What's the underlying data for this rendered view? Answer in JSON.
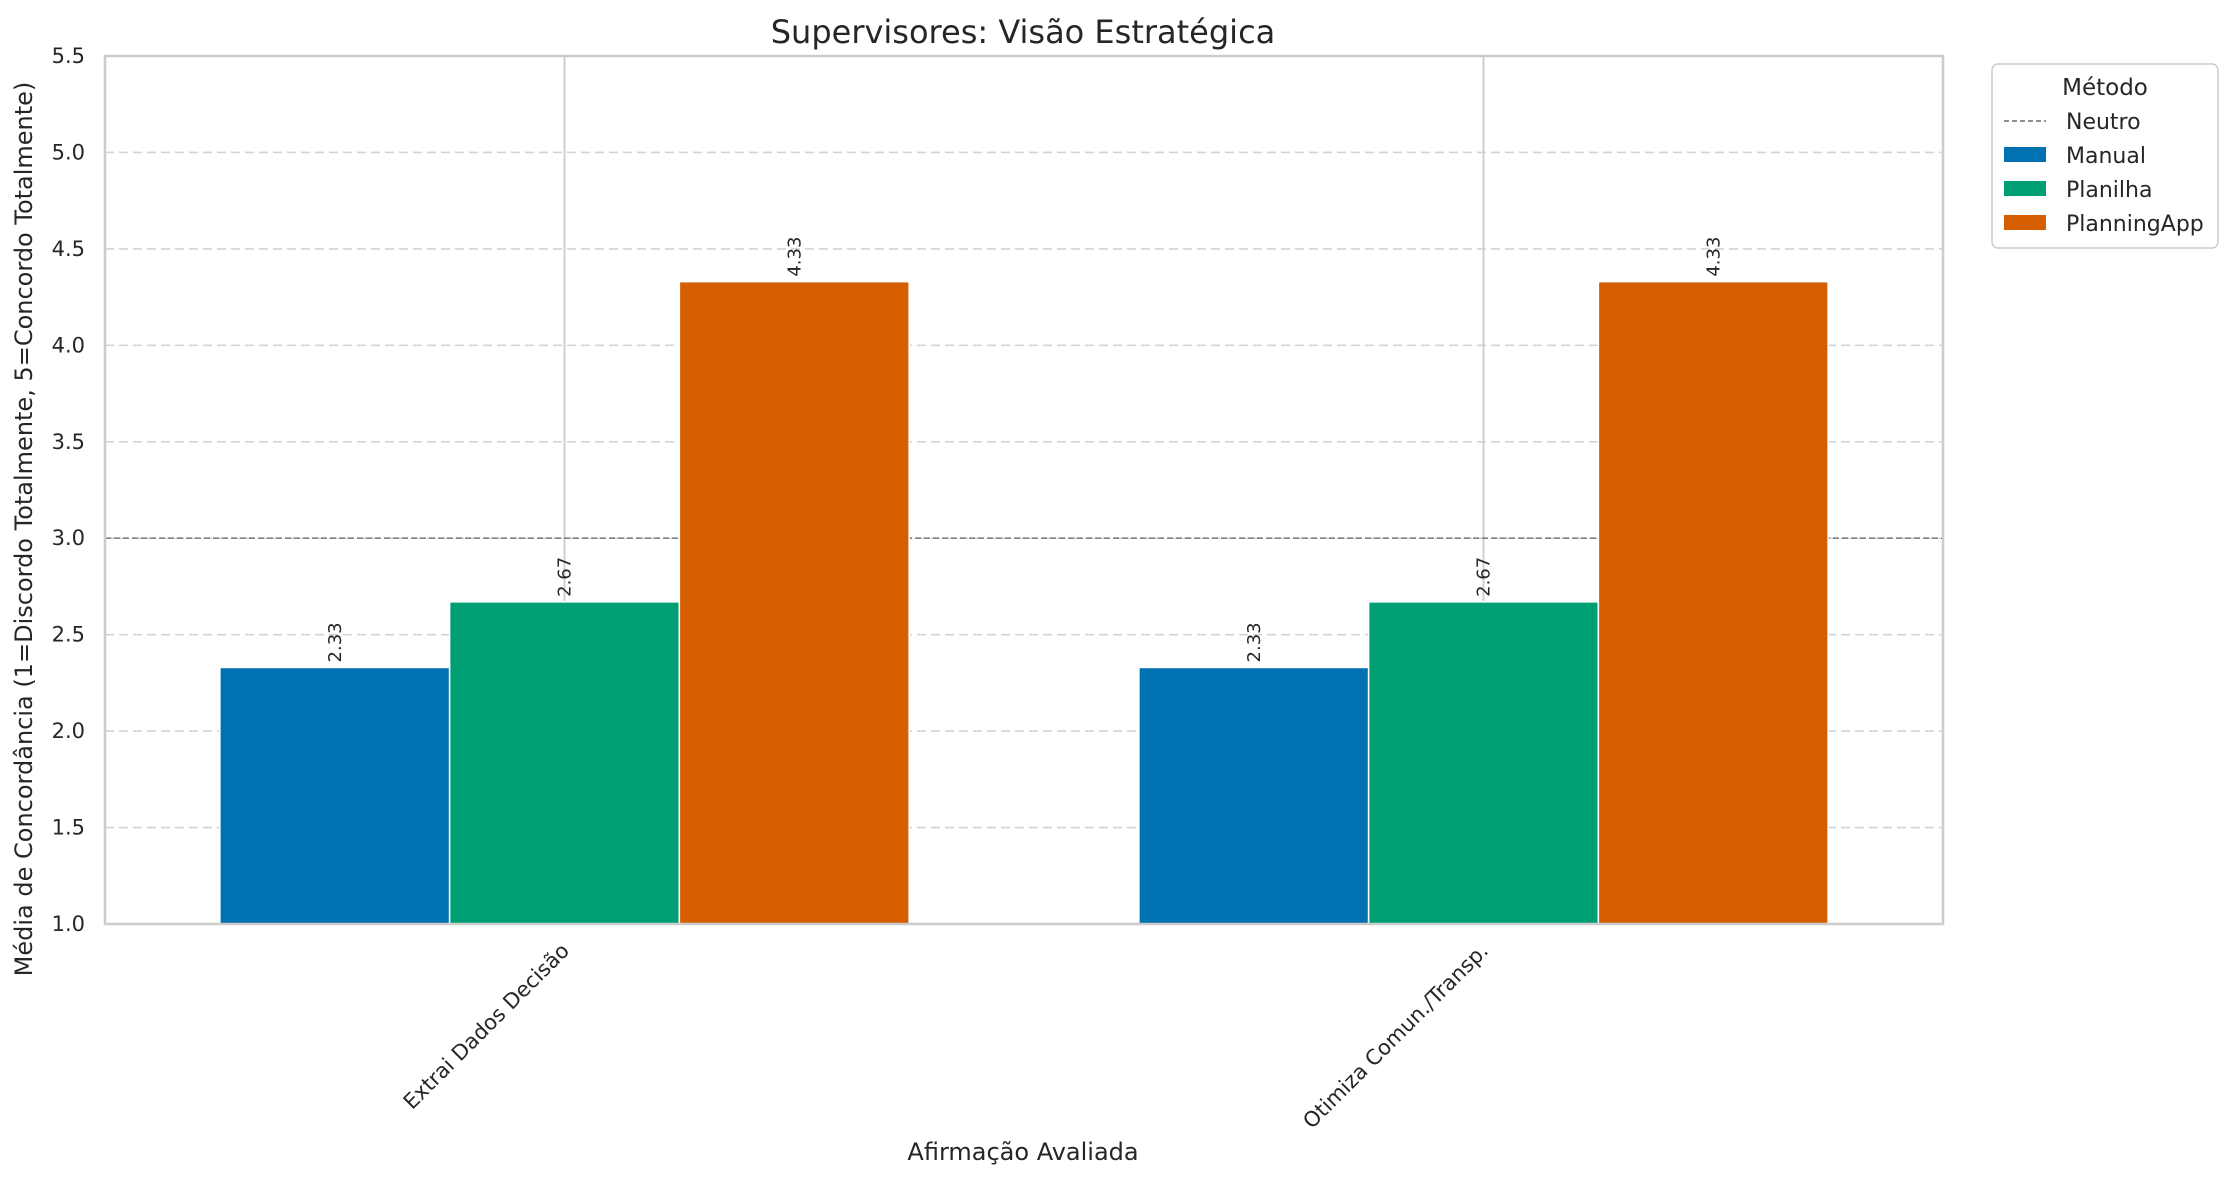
{
  "chart_data": {
    "type": "bar",
    "title": "Supervisores: Visão Estratégica",
    "xlabel": "Afirmação Avaliada",
    "ylabel": "Média de Concordância (1=Discordo Totalmente, 5=Concordo Totalmente)",
    "categories": [
      "Extrai Dados Decisão",
      "Otimiza Comun./Transp."
    ],
    "series": [
      {
        "name": "Manual",
        "values": [
          2.33,
          2.33
        ],
        "color": "#0072b2"
      },
      {
        "name": "Planilha",
        "values": [
          2.67,
          2.67
        ],
        "color": "#009e73"
      },
      {
        "name": "PlanningApp",
        "values": [
          4.33,
          4.33
        ],
        "color": "#d55e00"
      }
    ],
    "data_labels": [
      [
        "2.33",
        "2.33"
      ],
      [
        "2.67",
        "2.67"
      ],
      [
        "4.33",
        "4.33"
      ]
    ],
    "ylim": [
      1.0,
      5.5
    ],
    "yticks": [
      "1.0",
      "1.5",
      "2.0",
      "2.5",
      "3.0",
      "3.5",
      "4.0",
      "4.5",
      "5.0",
      "5.5"
    ],
    "reference_line": {
      "label": "Neutro",
      "value": 3.0,
      "color": "#808080"
    },
    "grid": true,
    "legend": {
      "title": "Método",
      "placement": "outside-top-right"
    }
  }
}
